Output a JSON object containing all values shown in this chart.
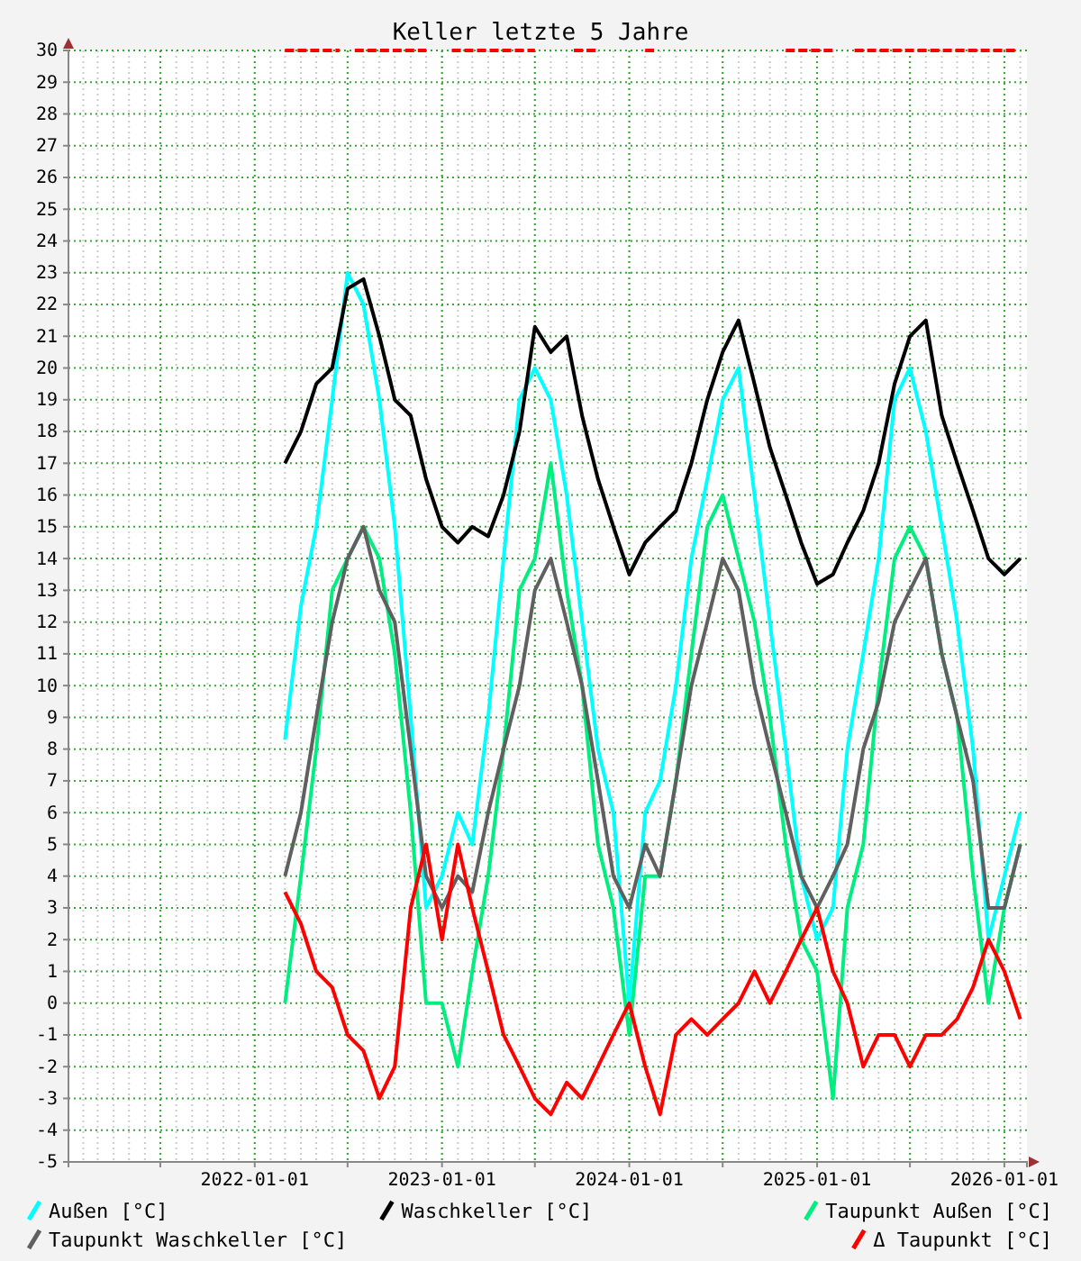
{
  "chart_data": {
    "type": "line",
    "title": "Keller letzte 5 Jahre",
    "x": [
      "2022-03-01",
      "2022-04-01",
      "2022-05-01",
      "2022-06-01",
      "2022-07-01",
      "2022-08-01",
      "2022-09-01",
      "2022-10-01",
      "2022-11-01",
      "2022-12-01",
      "2023-01-01",
      "2023-02-01",
      "2023-03-01",
      "2023-04-01",
      "2023-05-01",
      "2023-06-01",
      "2023-07-01",
      "2023-08-01",
      "2023-09-01",
      "2023-10-01",
      "2023-11-01",
      "2023-12-01",
      "2024-01-01",
      "2024-02-01",
      "2024-03-01",
      "2024-04-01",
      "2024-05-01",
      "2024-06-01",
      "2024-07-01",
      "2024-08-01",
      "2024-09-01",
      "2024-10-01",
      "2024-11-01",
      "2024-12-01",
      "2025-01-01",
      "2025-02-01",
      "2025-03-01",
      "2025-04-01",
      "2025-05-01",
      "2025-06-01",
      "2025-07-01",
      "2025-08-01",
      "2025-09-01",
      "2025-10-01",
      "2025-11-01",
      "2025-12-01",
      "2026-01-01",
      "2026-02-01"
    ],
    "series": [
      {
        "name": "Außen [°C]",
        "color": "#00ffff",
        "values": [
          8.3,
          12.5,
          15,
          19,
          23,
          22,
          19,
          15,
          9,
          3,
          4,
          6,
          5,
          9,
          14,
          19,
          20,
          19,
          16,
          12,
          8,
          6,
          0,
          6,
          7,
          10,
          14,
          16.5,
          19,
          20,
          16,
          12,
          8,
          4,
          2,
          3,
          8,
          11,
          14,
          19,
          20,
          18,
          15,
          12,
          8,
          2,
          4,
          6
        ]
      },
      {
        "name": "Waschkeller [°C]",
        "color": "#000000",
        "values": [
          17,
          18,
          19.5,
          20,
          22.5,
          22.8,
          21,
          19,
          18.5,
          16.5,
          15,
          14.5,
          15,
          14.7,
          16,
          18,
          21.3,
          20.5,
          21,
          18.5,
          16.5,
          15,
          13.5,
          14.5,
          15,
          15.5,
          17,
          19,
          20.5,
          21.5,
          19.5,
          17.5,
          16,
          14.5,
          13.2,
          13.5,
          14.5,
          15.5,
          17,
          19.5,
          21,
          21.5,
          18.5,
          17,
          15.5,
          14,
          13.5,
          14
        ]
      },
      {
        "name": "Taupunkt Außen [°C]",
        "color": "#00ee80",
        "values": [
          0,
          4,
          8,
          13,
          14,
          15,
          14,
          11,
          6,
          0,
          0,
          -2,
          1,
          4,
          8,
          13,
          14,
          17,
          13,
          10,
          5,
          3,
          -1,
          4,
          4,
          7,
          11,
          15,
          16,
          14,
          12,
          9,
          5,
          2,
          1,
          -3,
          3,
          5,
          10,
          14,
          15,
          14,
          11,
          9,
          4,
          0,
          3,
          5
        ]
      },
      {
        "name": "Taupunkt Waschkeller [°C]",
        "color": "#606060",
        "values": [
          4,
          6,
          9,
          12,
          14,
          15,
          13,
          12,
          8,
          4,
          3,
          4,
          3.5,
          6,
          8,
          10,
          13,
          14,
          12,
          10,
          7,
          4,
          3,
          5,
          4,
          7,
          10,
          12,
          14,
          13,
          10,
          8,
          6,
          4,
          3,
          4,
          5,
          8,
          9.5,
          12,
          13,
          14,
          11,
          9,
          7,
          3,
          3,
          5
        ]
      },
      {
        "name": "Δ Taupunkt [°C]",
        "color": "#ff0000",
        "values": [
          3.5,
          2.5,
          1,
          0.5,
          -1,
          -1.5,
          -3,
          -2,
          3,
          5,
          2,
          5,
          3,
          1,
          -1,
          -2,
          -3,
          -3.5,
          -2.5,
          -3,
          -2,
          -1,
          0,
          -2,
          -3.5,
          -1,
          -0.5,
          -1,
          -0.5,
          0,
          1,
          0,
          1,
          2,
          3,
          1,
          0,
          -2,
          -1,
          -1,
          -2,
          -1,
          -1,
          -0.5,
          0.5,
          2,
          1,
          -0.5
        ]
      },
      {
        "color": "#ff0000",
        "line_style": "dashed",
        "x": [
          "2022-03-01",
          "2022-06-15",
          "2022-07-01",
          "2022-07-15",
          "2022-12-01",
          "2023-01-01",
          "2023-01-20",
          "2023-07-01",
          "2023-08-01",
          "2023-09-15",
          "2023-11-01",
          "2023-12-01",
          "2024-02-01",
          "2024-02-20",
          "2024-06-01",
          "2024-11-01",
          "2025-02-01",
          "2025-02-20",
          "2025-03-15",
          "2026-01-25"
        ],
        "values": [
          30,
          30,
          null,
          30,
          30,
          null,
          30,
          30,
          null,
          30,
          30,
          null,
          30,
          30,
          null,
          30,
          30,
          null,
          30,
          30
        ]
      }
    ],
    "xlim": [
      "2021-01-03",
      "2026-02-14"
    ],
    "xticks": [
      {
        "value": "2021-07-01",
        "label": null
      },
      {
        "value": "2022-01-01",
        "label": "2022-01-01"
      },
      {
        "value": "2022-07-01",
        "label": null
      },
      {
        "value": "2023-01-01",
        "label": "2023-01-01"
      },
      {
        "value": "2023-07-01",
        "label": null
      },
      {
        "value": "2024-01-01",
        "label": "2024-01-01"
      },
      {
        "value": "2024-07-01",
        "label": null
      },
      {
        "value": "2025-01-01",
        "label": "2025-01-01"
      },
      {
        "value": "2025-07-01",
        "label": null
      },
      {
        "value": "2026-01-01",
        "label": "2026-01-01"
      }
    ],
    "ylim": [
      -5,
      30
    ],
    "yticks": [
      -5,
      -4,
      -3,
      -2,
      -1,
      0,
      1,
      2,
      3,
      4,
      5,
      6,
      7,
      8,
      9,
      10,
      11,
      12,
      13,
      14,
      15,
      16,
      17,
      18,
      19,
      20,
      21,
      22,
      23,
      24,
      25,
      26,
      27,
      28,
      29,
      30
    ],
    "grid": true,
    "legend": "bottom",
    "line_style": "solid"
  }
}
